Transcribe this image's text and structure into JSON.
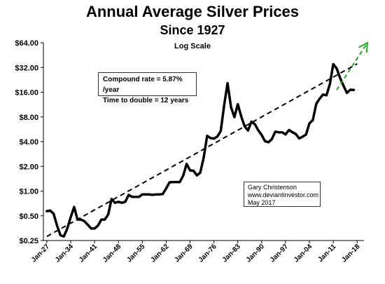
{
  "chart_data": {
    "type": "line",
    "title": "Annual Average Silver Prices",
    "subtitle": "Since 1927",
    "scale_note": "Log Scale",
    "y_scale": "log2",
    "ylim": [
      0.25,
      64
    ],
    "y_ticks": [
      {
        "value": 0.25,
        "label": "$0.25"
      },
      {
        "value": 0.5,
        "label": "$0.50"
      },
      {
        "value": 1,
        "label": "$1.00"
      },
      {
        "value": 2,
        "label": "$2.00"
      },
      {
        "value": 4,
        "label": "$4.00"
      },
      {
        "value": 8,
        "label": "$8.00"
      },
      {
        "value": 16,
        "label": "$16.00"
      },
      {
        "value": 32,
        "label": "$32.00"
      },
      {
        "value": 64,
        "label": "$64.00"
      }
    ],
    "xlim": [
      1926,
      2020
    ],
    "x_ticks": [
      {
        "value": 1927,
        "label": "Jan-27"
      },
      {
        "value": 1934,
        "label": "Jan-34"
      },
      {
        "value": 1941,
        "label": "Jan-41"
      },
      {
        "value": 1948,
        "label": "Jan-48"
      },
      {
        "value": 1955,
        "label": "Jan-55"
      },
      {
        "value": 1962,
        "label": "Jan-62"
      },
      {
        "value": 1969,
        "label": "Jan-69"
      },
      {
        "value": 1976,
        "label": "Jan-76"
      },
      {
        "value": 1983,
        "label": "Jan-83"
      },
      {
        "value": 1990,
        "label": "Jan-90"
      },
      {
        "value": 1997,
        "label": "Jan-97"
      },
      {
        "value": 2004,
        "label": "Jan-04"
      },
      {
        "value": 2011,
        "label": "Jan-11"
      },
      {
        "value": 2018,
        "label": "Jan-18"
      }
    ],
    "series": [
      {
        "color": "#000000",
        "x": [
          1927,
          1928,
          1929,
          1930,
          1931,
          1932,
          1933,
          1934,
          1935,
          1936,
          1937,
          1938,
          1939,
          1940,
          1941,
          1942,
          1943,
          1944,
          1945,
          1946,
          1947,
          1948,
          1949,
          1950,
          1951,
          1952,
          1953,
          1954,
          1955,
          1956,
          1957,
          1958,
          1959,
          1960,
          1961,
          1962,
          1963,
          1964,
          1965,
          1966,
          1967,
          1968,
          1969,
          1970,
          1971,
          1972,
          1973,
          1974,
          1975,
          1976,
          1977,
          1978,
          1979,
          1980,
          1981,
          1982,
          1983,
          1984,
          1985,
          1986,
          1987,
          1988,
          1989,
          1990,
          1991,
          1992,
          1993,
          1994,
          1995,
          1996,
          1997,
          1998,
          1999,
          2000,
          2001,
          2002,
          2003,
          2004,
          2005,
          2006,
          2007,
          2008,
          2009,
          2010,
          2011,
          2012,
          2013,
          2014,
          2015,
          2016,
          2017
        ],
        "values": [
          0.57,
          0.58,
          0.53,
          0.38,
          0.29,
          0.28,
          0.35,
          0.48,
          0.64,
          0.45,
          0.45,
          0.43,
          0.39,
          0.35,
          0.35,
          0.38,
          0.45,
          0.45,
          0.52,
          0.8,
          0.72,
          0.74,
          0.72,
          0.74,
          0.9,
          0.85,
          0.85,
          0.85,
          0.91,
          0.91,
          0.91,
          0.9,
          0.91,
          0.91,
          0.92,
          1.08,
          1.28,
          1.29,
          1.29,
          1.29,
          1.55,
          2.14,
          1.79,
          1.77,
          1.55,
          1.68,
          2.56,
          4.71,
          4.42,
          4.35,
          4.62,
          5.4,
          11.09,
          20.63,
          10.52,
          7.95,
          11.44,
          8.14,
          6.14,
          5.47,
          7.01,
          6.53,
          5.5,
          4.82,
          4.04,
          3.94,
          4.3,
          5.29,
          5.2,
          5.2,
          4.9,
          5.54,
          5.22,
          4.95,
          4.37,
          4.6,
          4.88,
          6.67,
          7.32,
          11.55,
          13.38,
          14.99,
          14.67,
          20.19,
          35.12,
          31.15,
          23.79,
          19.08,
          15.68,
          17.14,
          17.05
        ]
      }
    ],
    "trend": {
      "style": "dashed",
      "color": "#000000",
      "x": [
        1927,
        2018
      ],
      "values": [
        0.28,
        35.5
      ]
    },
    "projection": {
      "style": "dashed",
      "color": "#22aa22",
      "x": [
        2012,
        2021
      ],
      "values": [
        17.05,
        64
      ]
    },
    "annotations": {
      "rate": "Compound rate = 5.87% /year",
      "double": "Time to double = 12 years"
    },
    "credit": {
      "author": "Gary Christenson",
      "site": "www.deviantinvestor.com",
      "date": "May 2017"
    },
    "grid": false,
    "legend": "none"
  }
}
